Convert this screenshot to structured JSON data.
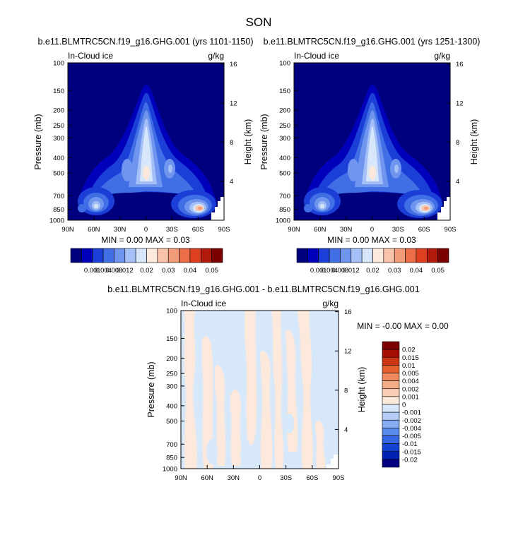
{
  "page": {
    "title": "SON"
  },
  "panels": [
    {
      "id": "p1",
      "title": "b.e11.BLMTRC5CN.f19_g16.GHG.001 (yrs 1101-1150)",
      "left_label": "In-Cloud ice",
      "right_label": "g/kg",
      "ylabel": "Pressure (mb)",
      "y2label": "Height (km)",
      "stats": "MIN =  0.00  MAX =  0.03"
    },
    {
      "id": "p2",
      "title": "b.e11.BLMTRC5CN.f19_g16.GHG.001 (yrs 1251-1300)",
      "left_label": "In-Cloud ice",
      "right_label": "g/kg",
      "ylabel": "Pressure (mb)",
      "y2label": "Height (km)",
      "stats": "MIN =  0.00  MAX =  0.03"
    },
    {
      "id": "p3",
      "title": "b.e11.BLMTRC5CN.f19_g16.GHG.001 - b.e11.BLMTRC5CN.f19_g16.GHG.001",
      "left_label": "In-Cloud ice",
      "right_label": "g/kg",
      "ylabel": "Pressure (mb)",
      "y2label": "Height (km)",
      "stats": "MIN = -0.00  MAX =  0.00"
    }
  ],
  "chart_data": [
    {
      "type": "heatmap",
      "panel": "p1",
      "x_ticks": [
        "90N",
        "60N",
        "30N",
        "0",
        "30S",
        "60S",
        "90S"
      ],
      "x_values": [
        90,
        60,
        30,
        0,
        -30,
        -60,
        -90
      ],
      "y_ticks": [
        100,
        150,
        200,
        250,
        300,
        400,
        500,
        700,
        850,
        1000
      ],
      "y_scale": "log",
      "ylim": [
        1000,
        100
      ],
      "y2_ticks": [
        4,
        8,
        12,
        16
      ],
      "levels": [
        0.001,
        0.004,
        0.008,
        0.012,
        0.02,
        0.03,
        0.04,
        0.05
      ],
      "colors": [
        "#00007f",
        "#0000bb",
        "#1b3fd6",
        "#3f6ee5",
        "#6f95ef",
        "#a5c0f6",
        "#d7e6fb",
        "#fde8dc",
        "#f8c3a9",
        "#f39c78",
        "#ec6e48",
        "#dd3f1f",
        "#b21a0c",
        "#7d0000"
      ],
      "features": [
        {
          "name": "tropical tower",
          "lat": 10,
          "p_top": 110,
          "p_bottom": 850,
          "peak": 0.03,
          "peak_p": 500
        },
        {
          "name": "NH midlatitude low cloud",
          "lat": 52,
          "p_top": 650,
          "p_bottom": 950,
          "peak": 0.012
        },
        {
          "name": "SH midlatitude low cloud",
          "lat": -58,
          "p_top": 680,
          "p_bottom": 950,
          "peak": 0.03
        }
      ]
    },
    {
      "type": "heatmap",
      "panel": "p2",
      "x_ticks": [
        "90N",
        "60N",
        "30N",
        "0",
        "30S",
        "60S",
        "90S"
      ],
      "x_values": [
        90,
        60,
        30,
        0,
        -30,
        -60,
        -90
      ],
      "y_ticks": [
        100,
        150,
        200,
        250,
        300,
        400,
        500,
        700,
        850,
        1000
      ],
      "y_scale": "log",
      "ylim": [
        1000,
        100
      ],
      "y2_ticks": [
        4,
        8,
        12,
        16
      ],
      "levels": [
        0.001,
        0.004,
        0.008,
        0.012,
        0.02,
        0.03,
        0.04,
        0.05
      ],
      "colors": [
        "#00007f",
        "#0000bb",
        "#1b3fd6",
        "#3f6ee5",
        "#6f95ef",
        "#a5c0f6",
        "#d7e6fb",
        "#fde8dc",
        "#f8c3a9",
        "#f39c78",
        "#ec6e48",
        "#dd3f1f",
        "#b21a0c",
        "#7d0000"
      ],
      "features": [
        {
          "name": "tropical tower",
          "lat": 10,
          "p_top": 110,
          "p_bottom": 850,
          "peak": 0.03,
          "peak_p": 500
        },
        {
          "name": "NH midlatitude low cloud",
          "lat": 52,
          "p_top": 650,
          "p_bottom": 950,
          "peak": 0.012
        },
        {
          "name": "SH midlatitude low cloud",
          "lat": -58,
          "p_top": 680,
          "p_bottom": 950,
          "peak": 0.03
        }
      ]
    },
    {
      "type": "heatmap",
      "panel": "p3",
      "x_ticks": [
        "90N",
        "60N",
        "30N",
        "0",
        "30S",
        "60S",
        "90S"
      ],
      "x_values": [
        90,
        60,
        30,
        0,
        -30,
        -60,
        -90
      ],
      "y_ticks": [
        100,
        150,
        200,
        250,
        300,
        400,
        500,
        700,
        850,
        1000
      ],
      "y_scale": "log",
      "ylim": [
        1000,
        100
      ],
      "y2_ticks": [
        4,
        8,
        12,
        16
      ],
      "levels": [
        -0.02,
        -0.015,
        -0.01,
        -0.005,
        -0.004,
        -0.002,
        -0.001,
        0,
        0.001,
        0.002,
        0.004,
        0.005,
        0.01,
        0.015,
        0.02
      ],
      "level_labels": [
        "-0.02",
        "-0.015",
        "-0.01",
        "-0.005",
        "-0.004",
        "-0.002",
        "-0.001",
        "0",
        "0.001",
        "0.002",
        "0.004",
        "0.005",
        "0.01",
        "0.015",
        "0.02"
      ],
      "colors": [
        "#00007f",
        "#0022b4",
        "#1442d2",
        "#3467e0",
        "#5a8aea",
        "#86acf2",
        "#b3cdf7",
        "#d8e8fb",
        "#fde8dc",
        "#f9cdb4",
        "#f4ab88",
        "#ef8a5e",
        "#e5612f",
        "#cc3514",
        "#a50e04",
        "#7d0000"
      ],
      "features": [
        {
          "name": "mostly near-zero positive/negative differences in alternating latitude strips",
          "value_range": [
            -0.001,
            0.001
          ]
        }
      ]
    }
  ]
}
